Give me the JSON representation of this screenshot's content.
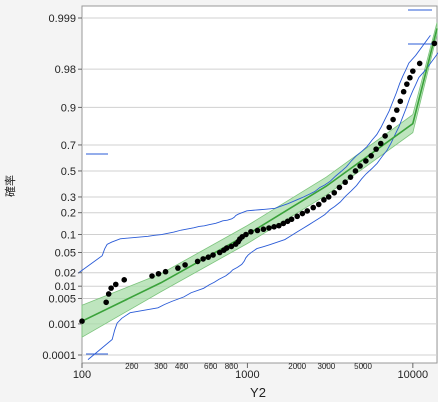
{
  "chart_data": {
    "type": "scatter",
    "title": "",
    "xlabel": "Y2",
    "ylabel": "確率",
    "x_scale": "log",
    "y_scale": "normal-probability",
    "xlim": [
      100,
      14000
    ],
    "ylim": [
      0.0001,
      0.999
    ],
    "grid": true,
    "x_major_ticks": [
      {
        "value": 100,
        "label": "100"
      },
      {
        "value": 1000,
        "label": "1000"
      },
      {
        "value": 10000,
        "label": "10000"
      }
    ],
    "x_minor_ticks": [
      {
        "value": 200,
        "label": "200"
      },
      {
        "value": 300,
        "label": "300"
      },
      {
        "value": 400,
        "label": "400"
      },
      {
        "value": 600,
        "label": "600"
      },
      {
        "value": 800,
        "label": "800"
      },
      {
        "value": 2000,
        "label": "2000"
      },
      {
        "value": 3000,
        "label": "3000"
      },
      {
        "value": 5000,
        "label": "5000"
      }
    ],
    "y_ticks": [
      {
        "value": 0.999,
        "label": "0.999"
      },
      {
        "value": 0.98,
        "label": "0.98"
      },
      {
        "value": 0.9,
        "label": "0.9"
      },
      {
        "value": 0.7,
        "label": "0.7"
      },
      {
        "value": 0.5,
        "label": "0.5"
      },
      {
        "value": 0.3,
        "label": "0.3"
      },
      {
        "value": 0.2,
        "label": "0.2"
      },
      {
        "value": 0.1,
        "label": "0.1"
      },
      {
        "value": 0.05,
        "label": "0.05"
      },
      {
        "value": 0.02,
        "label": "0.02"
      },
      {
        "value": 0.01,
        "label": "0.01"
      },
      {
        "value": 0.005,
        "label": "0.005"
      },
      {
        "value": 0.001,
        "label": "0.001"
      },
      {
        "value": 0.0001,
        "label": "0.0001"
      }
    ],
    "fit_line": {
      "color": "#3aa23a",
      "band_color": "#a8dca8",
      "points": [
        [
          100,
          0.0012
        ],
        [
          300,
          0.012
        ],
        [
          1000,
          0.1
        ],
        [
          3000,
          0.38
        ],
        [
          10000,
          0.83
        ],
        [
          14000,
          0.998
        ]
      ]
    },
    "confidence_band_color": "#2a5bd7",
    "series": [
      {
        "color": "#000000",
        "points": [
          [
            100,
            0.0012
          ],
          [
            140,
            0.004
          ],
          [
            145,
            0.0065
          ],
          [
            150,
            0.009
          ],
          [
            160,
            0.011
          ],
          [
            180,
            0.014
          ],
          [
            265,
            0.017
          ],
          [
            290,
            0.019
          ],
          [
            320,
            0.021
          ],
          [
            380,
            0.025
          ],
          [
            420,
            0.029
          ],
          [
            500,
            0.034
          ],
          [
            540,
            0.038
          ],
          [
            580,
            0.041
          ],
          [
            620,
            0.045
          ],
          [
            680,
            0.05
          ],
          [
            720,
            0.055
          ],
          [
            750,
            0.06
          ],
          [
            800,
            0.064
          ],
          [
            850,
            0.07
          ],
          [
            880,
            0.077
          ],
          [
            900,
            0.085
          ],
          [
            930,
            0.092
          ],
          [
            980,
            0.1
          ],
          [
            1050,
            0.11
          ],
          [
            1150,
            0.115
          ],
          [
            1250,
            0.12
          ],
          [
            1350,
            0.125
          ],
          [
            1450,
            0.13
          ],
          [
            1550,
            0.135
          ],
          [
            1650,
            0.145
          ],
          [
            1750,
            0.155
          ],
          [
            1850,
            0.165
          ],
          [
            2000,
            0.18
          ],
          [
            2150,
            0.195
          ],
          [
            2300,
            0.21
          ],
          [
            2500,
            0.23
          ],
          [
            2700,
            0.25
          ],
          [
            2900,
            0.28
          ],
          [
            3100,
            0.3
          ],
          [
            3350,
            0.33
          ],
          [
            3600,
            0.37
          ],
          [
            3900,
            0.41
          ],
          [
            4200,
            0.45
          ],
          [
            4500,
            0.5
          ],
          [
            4800,
            0.54
          ],
          [
            5200,
            0.58
          ],
          [
            5600,
            0.62
          ],
          [
            6000,
            0.67
          ],
          [
            6400,
            0.71
          ],
          [
            6800,
            0.76
          ],
          [
            7200,
            0.81
          ],
          [
            7600,
            0.85
          ],
          [
            8000,
            0.89
          ],
          [
            8400,
            0.92
          ],
          [
            8800,
            0.945
          ],
          [
            9200,
            0.96
          ],
          [
            9600,
            0.97
          ],
          [
            10000,
            0.978
          ],
          [
            11000,
            0.985
          ],
          [
            13500,
            0.995
          ]
        ]
      }
    ]
  }
}
